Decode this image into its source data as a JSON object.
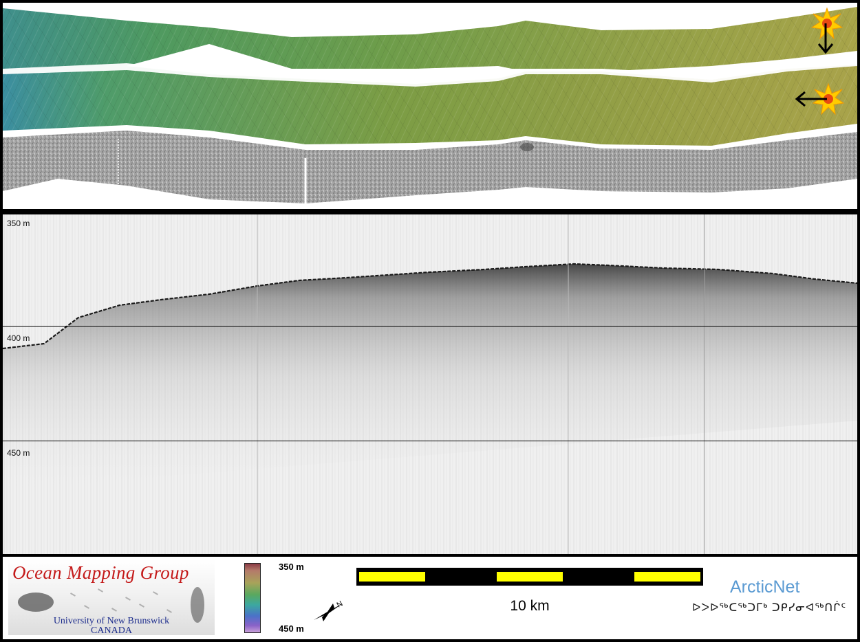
{
  "swaths": {
    "bathymetry_strip_1": "sun-illuminated multibeam bathymetry",
    "bathymetry_strip_2": "sun-illuminated multibeam bathymetry",
    "backscatter_strip": "backscatter mosaic",
    "sun_icons": [
      "sun-icon-north",
      "sun-icon-west"
    ],
    "arrow_icons": [
      "arrow-down-icon",
      "arrow-left-icon"
    ]
  },
  "profile": {
    "depth_labels": [
      "350 m",
      "400 m",
      "450 m"
    ]
  },
  "legend": {
    "ocean_mapping": {
      "title": "Ocean Mapping Group",
      "line1": "University of New Brunswick",
      "line2": "CANADA"
    },
    "colorbar": {
      "top_label": "350 m",
      "bottom_label": "450 m"
    },
    "north_arrow_label": "N",
    "scalebar_label": "10 km",
    "arcticnet": {
      "name": "ArcticNet",
      "syllabics": "ᐅᐳᐅᖅᑕᖅᑐᒥᒃ ᑐᑭᓯᓂᐊᖅᑎᒌᑦ"
    },
    "colors": {
      "scalebar_fill": "#ffff00",
      "scalebar_frame": "#000000",
      "ocean_title": "#c41a1a",
      "ocean_sub": "#1c2c8c",
      "arcticnet": "#5a9ad2"
    }
  }
}
